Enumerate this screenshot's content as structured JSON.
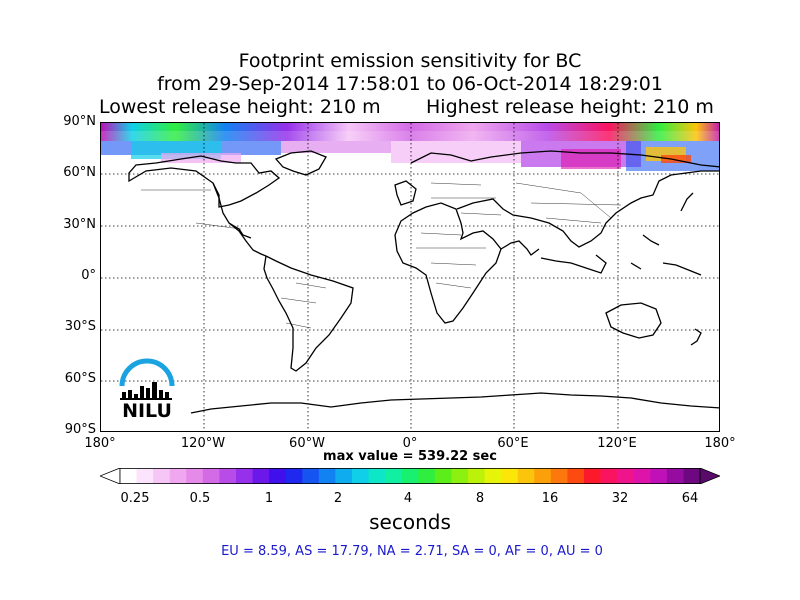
{
  "title": {
    "line1": "Footprint emission sensitivity for BC",
    "line2": "from 29-Sep-2014 17:58:01 to 06-Oct-2014 18:29:01",
    "lowest": "Lowest release height: 210 m",
    "highest": "Highest release height: 210 m"
  },
  "map": {
    "lat_ticks": [
      "90°N",
      "60°N",
      "30°N",
      "0°",
      "30°S",
      "60°S",
      "90°S"
    ],
    "lon_ticks": [
      "180°",
      "120°W",
      "60°W",
      "0°",
      "60°E",
      "120°E",
      "180°"
    ],
    "max_value": "max value = 539.22 sec"
  },
  "colorbar": {
    "ticks": [
      "0.25",
      "0.5",
      "1",
      "2",
      "4",
      "8",
      "16",
      "32",
      "64"
    ],
    "label": "seconds",
    "colors": [
      "#ffffff",
      "#fce4fc",
      "#f6c6f6",
      "#efa8ef",
      "#e58ae8",
      "#d36be6",
      "#b84ce8",
      "#9630ea",
      "#6d18ea",
      "#4010ec",
      "#2028f0",
      "#1654f2",
      "#1282f2",
      "#10acf0",
      "#10cfe8",
      "#0ee6c8",
      "#10f0a0",
      "#18f070",
      "#30ee40",
      "#5cee18",
      "#8cf010",
      "#bcf20a",
      "#e6f40a",
      "#fce60a",
      "#fcc40a",
      "#fca00a",
      "#fc780c",
      "#fc4a10",
      "#fc1a2a",
      "#fa1460",
      "#f0148c",
      "#de14aa",
      "#c010b8",
      "#960ca0",
      "#6e0880"
    ],
    "under_color": "#ffffff",
    "over_color": "#5a0a6a"
  },
  "logo": {
    "text": "NILU",
    "arc_color": "#1aa3e0"
  },
  "regions_text": "EU = 8.59,  AS = 17.79,  NA = 2.71,  SA = 0,  AF = 0,  AU = 0"
}
